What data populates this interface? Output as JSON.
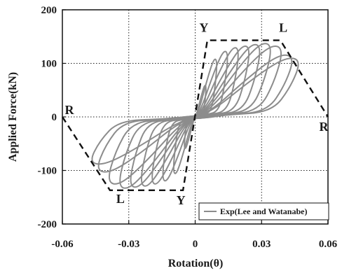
{
  "chart_data": {
    "type": "line",
    "title": "",
    "xlabel": "Rotation(θ)",
    "ylabel": "Applied Force(kN)",
    "xlim": [
      -0.06,
      0.06
    ],
    "ylim": [
      -200,
      200
    ],
    "x_ticks": [
      "-0.06",
      "-0.03",
      "0",
      "0.03",
      "0.06"
    ],
    "x_tick_values": [
      -0.06,
      -0.03,
      0,
      0.03,
      0.06
    ],
    "y_ticks": [
      "200",
      "100",
      "0",
      "-100",
      "-200"
    ],
    "y_tick_values": [
      200,
      100,
      0,
      -100,
      -200
    ],
    "grid": "dotted",
    "legend": {
      "position": "bottom-right",
      "entries": [
        "Exp(Lee and Watanabe)"
      ]
    },
    "colors": {
      "experiment": "#8c8c8c",
      "envelope": "#111111"
    },
    "envelope": {
      "style": "dashed",
      "points": [
        {
          "x": -0.06,
          "y": 0,
          "label": "R"
        },
        {
          "x": -0.0385,
          "y": -137,
          "label": "L"
        },
        {
          "x": -0.0055,
          "y": -137,
          "label": "Y"
        },
        {
          "x": 0.0055,
          "y": 143,
          "label": "Y"
        },
        {
          "x": 0.0385,
          "y": 143,
          "label": "L"
        },
        {
          "x": 0.06,
          "y": 0,
          "label": "R"
        }
      ]
    },
    "hysteresis_loops": {
      "series_name": "Exp(Lee and Watanabe)",
      "loops": [
        {
          "rot": 0.005,
          "fpos": 60,
          "fneg": -60
        },
        {
          "rot": 0.01,
          "fpos": 110,
          "fneg": -108
        },
        {
          "rot": 0.015,
          "fpos": 125,
          "fneg": -122
        },
        {
          "rot": 0.02,
          "fpos": 132,
          "fneg": -128
        },
        {
          "rot": 0.025,
          "fpos": 135,
          "fneg": -132
        },
        {
          "rot": 0.03,
          "fpos": 138,
          "fneg": -134
        },
        {
          "rot": 0.035,
          "fpos": 140,
          "fneg": -136
        },
        {
          "rot": 0.04,
          "fpos": 135,
          "fneg": -128
        },
        {
          "rot": 0.045,
          "fpos": 118,
          "fneg": -105
        },
        {
          "rot": 0.048,
          "fpos": 112,
          "fneg": -90
        }
      ]
    }
  }
}
